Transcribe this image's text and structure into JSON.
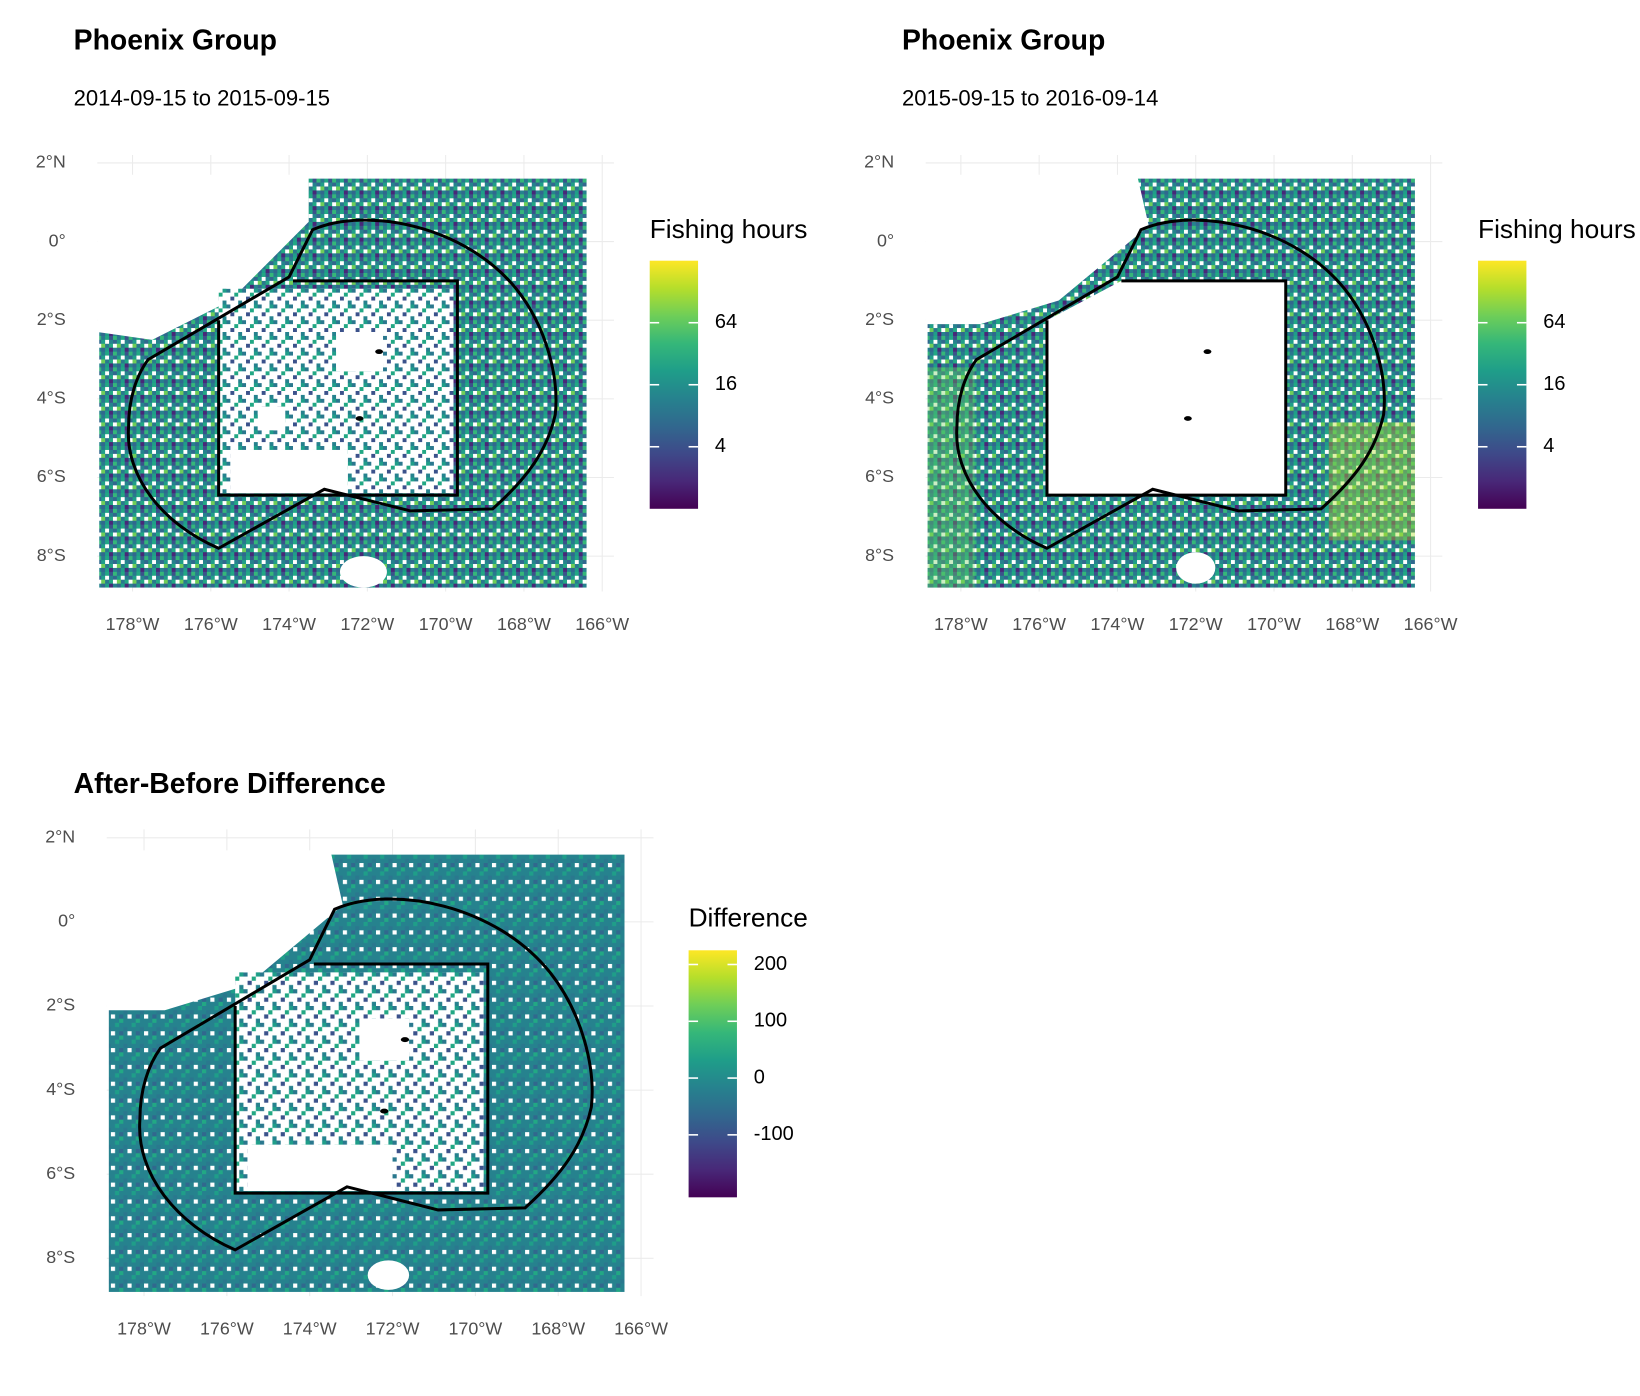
{
  "chart_data": [
    {
      "type": "heatmap",
      "title": "Phoenix Group",
      "subtitle": "2014-09-15 to 2015-09-15",
      "xlim": [
        -178.9,
        -165.7
      ],
      "ylim": [
        -8.9,
        2.2
      ],
      "xticks": [
        {
          "value": -178,
          "label": "178°W"
        },
        {
          "value": -176,
          "label": "176°W"
        },
        {
          "value": -174,
          "label": "174°W"
        },
        {
          "value": -172,
          "label": "172°W"
        },
        {
          "value": -170,
          "label": "170°W"
        },
        {
          "value": -168,
          "label": "168°W"
        },
        {
          "value": -166,
          "label": "166°W"
        }
      ],
      "yticks": [
        {
          "value": 2,
          "label": "2°N"
        },
        {
          "value": 0,
          "label": "0°"
        },
        {
          "value": -2,
          "label": "2°S"
        },
        {
          "value": -4,
          "label": "4°S"
        },
        {
          "value": -6,
          "label": "6°S"
        },
        {
          "value": -8,
          "label": "8°S"
        }
      ],
      "grid": true,
      "colorbar_title": "Fishing hours",
      "colorbar_lim": [
        1,
        256
      ],
      "colorbar_log": true,
      "colorbar_ticks": [
        4,
        16,
        64
      ],
      "colormap": [
        "#440154",
        "#482878",
        "#3e4989",
        "#31688e",
        "#26828e",
        "#1f9e89",
        "#35b779",
        "#6ece58",
        "#b5de2b",
        "#fde725"
      ]
    },
    {
      "type": "heatmap",
      "title": "Phoenix Group",
      "subtitle": "2015-09-15 to 2016-09-14",
      "xlim": [
        -178.9,
        -165.7
      ],
      "ylim": [
        -8.9,
        2.2
      ],
      "xticks": [
        {
          "value": -178,
          "label": "178°W"
        },
        {
          "value": -176,
          "label": "176°W"
        },
        {
          "value": -174,
          "label": "174°W"
        },
        {
          "value": -172,
          "label": "172°W"
        },
        {
          "value": -170,
          "label": "170°W"
        },
        {
          "value": -168,
          "label": "168°W"
        },
        {
          "value": -166,
          "label": "166°W"
        }
      ],
      "yticks": [
        {
          "value": 2,
          "label": "2°N"
        },
        {
          "value": 0,
          "label": "0°"
        },
        {
          "value": -2,
          "label": "2°S"
        },
        {
          "value": -4,
          "label": "4°S"
        },
        {
          "value": -6,
          "label": "6°S"
        },
        {
          "value": -8,
          "label": "8°S"
        }
      ],
      "grid": true,
      "colorbar_title": "Fishing hours",
      "colorbar_lim": [
        1,
        256
      ],
      "colorbar_log": true,
      "colorbar_ticks": [
        4,
        16,
        64
      ],
      "colormap": [
        "#440154",
        "#482878",
        "#3e4989",
        "#31688e",
        "#26828e",
        "#1f9e89",
        "#35b779",
        "#6ece58",
        "#b5de2b",
        "#fde725"
      ]
    },
    {
      "type": "heatmap",
      "title": "After-Before Difference",
      "xlim": [
        -178.9,
        -165.7
      ],
      "ylim": [
        -8.9,
        2.2
      ],
      "xticks": [
        {
          "value": -178,
          "label": "178°W"
        },
        {
          "value": -176,
          "label": "176°W"
        },
        {
          "value": -174,
          "label": "174°W"
        },
        {
          "value": -172,
          "label": "172°W"
        },
        {
          "value": -170,
          "label": "170°W"
        },
        {
          "value": -168,
          "label": "168°W"
        },
        {
          "value": -166,
          "label": "166°W"
        }
      ],
      "yticks": [
        {
          "value": 2,
          "label": "2°N"
        },
        {
          "value": 0,
          "label": "0°"
        },
        {
          "value": -2,
          "label": "2°S"
        },
        {
          "value": -4,
          "label": "4°S"
        },
        {
          "value": -6,
          "label": "6°S"
        },
        {
          "value": -8,
          "label": "8°S"
        }
      ],
      "grid": true,
      "colorbar_title": "Difference",
      "colorbar_lim": [
        -210,
        225
      ],
      "colorbar_log": false,
      "colorbar_ticks": [
        -100,
        0,
        100,
        200
      ],
      "colormap": [
        "#440154",
        "#482878",
        "#3e4989",
        "#31688e",
        "#26828e",
        "#1f9e89",
        "#35b779",
        "#6ece58",
        "#b5de2b",
        "#fde725"
      ]
    }
  ]
}
